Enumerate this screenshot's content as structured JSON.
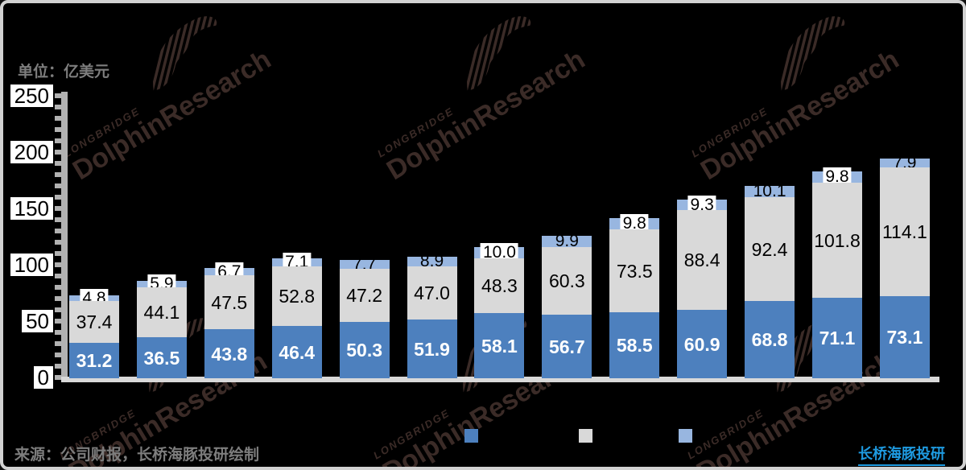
{
  "meta": {
    "unit_label": "单位：亿美元",
    "source_note": "来源：公司财报，长桥海豚投研绘制",
    "brand": "长桥海豚投研"
  },
  "watermark": {
    "small_text": "LONGBRIDGE",
    "large_text": "DolphinResearch",
    "icon": "dolphin-icon",
    "color": "#3b2b27"
  },
  "colors": {
    "series_blue": "#4d80be",
    "series_gray": "#d9d9d9",
    "series_lightblue": "#98b6e0",
    "axis_gray": "#b2b2b2",
    "baseline_gray": "#d9d9d9",
    "background": "#000000",
    "brand_blue": "#1e9ae0"
  },
  "y_axis": {
    "ticks": [
      250,
      200,
      150,
      100,
      50,
      0
    ]
  },
  "legend": {
    "items": [
      {
        "label": "",
        "color": "#4d80be"
      },
      {
        "label": "",
        "color": "#d9d9d9"
      },
      {
        "label": "",
        "color": "#98b6e0"
      }
    ]
  },
  "chart_data": {
    "type": "bar",
    "stacked": true,
    "title": "",
    "xlabel": "",
    "ylabel": "",
    "unit": "亿美元",
    "ylim": [
      0,
      250
    ],
    "y_tick_step": 50,
    "grid": false,
    "legend_position": "bottom",
    "categories": [
      "",
      "",
      "",
      "",
      "",
      "",
      "",
      "",
      "",
      "",
      "",
      "",
      ""
    ],
    "series": [
      {
        "name": "",
        "color": "#4d80be",
        "values": [
          31.2,
          36.5,
          43.8,
          46.4,
          50.3,
          51.9,
          58.1,
          56.7,
          58.5,
          60.9,
          68.8,
          71.1,
          73.1
        ]
      },
      {
        "name": "",
        "color": "#d9d9d9",
        "values": [
          37.4,
          44.1,
          47.5,
          52.8,
          47.2,
          47.0,
          48.3,
          60.3,
          73.5,
          88.4,
          92.4,
          101.8,
          114.1
        ]
      },
      {
        "name": "",
        "color": "#98b6e0",
        "values": [
          4.8,
          5.9,
          6.7,
          7.1,
          7.7,
          8.9,
          10.0,
          9.9,
          9.8,
          9.3,
          10.1,
          9.8,
          7.9
        ]
      }
    ],
    "top_label_white_bg": [
      true,
      true,
      true,
      true,
      false,
      false,
      true,
      false,
      true,
      true,
      false,
      true,
      false
    ]
  }
}
